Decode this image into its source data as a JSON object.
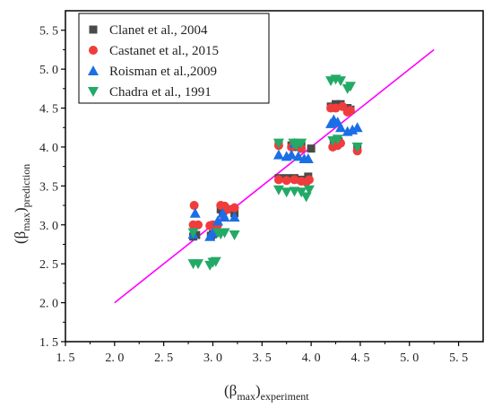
{
  "chart_data": {
    "type": "scatter",
    "xlabel": {
      "main": "(β",
      "sub1": "max",
      "close": ")",
      "sub2": "experiment"
    },
    "ylabel": {
      "main": "(β",
      "sub1": "max",
      "close": ")",
      "sub2": "prediction"
    },
    "xlim": [
      1.5,
      5.75
    ],
    "ylim": [
      1.5,
      5.75
    ],
    "xticks": [
      "1. 5",
      "2. 0",
      "2. 5",
      "3. 0",
      "3. 5",
      "4. 0",
      "4. 5",
      "5. 0",
      "5. 5"
    ],
    "yticks": [
      "1. 5",
      "2. 0",
      "2. 5",
      "3. 0",
      "3. 5",
      "4. 0",
      "4. 5",
      "5. 0",
      "5. 5"
    ],
    "xtick_values": [
      1.5,
      2.0,
      2.5,
      3.0,
      3.5,
      4.0,
      4.5,
      5.0,
      5.5
    ],
    "ytick_values": [
      1.5,
      2.0,
      2.5,
      3.0,
      3.5,
      4.0,
      4.5,
      5.0,
      5.5
    ],
    "grid": false,
    "legend_position": "top-left",
    "reference_line": {
      "x": [
        2.0,
        5.25
      ],
      "y": [
        2.0,
        5.25
      ],
      "color": "#ff00ff"
    },
    "series": [
      {
        "name": "Clanet et al., 2004",
        "marker": "square",
        "color": "#4a4a4a",
        "points": [
          [
            2.8,
            2.85
          ],
          [
            2.83,
            2.87
          ],
          [
            2.98,
            2.86
          ],
          [
            3.0,
            2.88
          ],
          [
            3.08,
            3.2
          ],
          [
            3.1,
            3.18
          ],
          [
            3.15,
            3.2
          ],
          [
            3.22,
            3.15
          ],
          [
            3.67,
            3.6
          ],
          [
            3.75,
            3.6
          ],
          [
            3.83,
            3.6
          ],
          [
            3.9,
            3.58
          ],
          [
            3.97,
            3.62
          ],
          [
            3.67,
            4.05
          ],
          [
            3.8,
            4.02
          ],
          [
            3.85,
            4.0
          ],
          [
            3.9,
            4.02
          ],
          [
            4.0,
            3.98
          ],
          [
            4.2,
            4.52
          ],
          [
            4.25,
            4.55
          ],
          [
            4.3,
            4.55
          ],
          [
            4.37,
            4.5
          ],
          [
            4.4,
            4.48
          ],
          [
            4.23,
            4.05
          ],
          [
            4.28,
            4.07
          ],
          [
            4.47,
            4.0
          ]
        ]
      },
      {
        "name": "Castanet et al., 2015",
        "marker": "circle",
        "color": "#f03c3c",
        "points": [
          [
            2.8,
            3.0
          ],
          [
            2.81,
            3.25
          ],
          [
            2.85,
            3.0
          ],
          [
            2.97,
            2.99
          ],
          [
            3.0,
            3.0
          ],
          [
            3.05,
            3.0
          ],
          [
            3.08,
            3.25
          ],
          [
            3.12,
            3.24
          ],
          [
            3.15,
            3.2
          ],
          [
            3.22,
            3.22
          ],
          [
            3.67,
            3.58
          ],
          [
            3.75,
            3.57
          ],
          [
            3.83,
            3.58
          ],
          [
            3.9,
            3.56
          ],
          [
            3.95,
            3.55
          ],
          [
            3.98,
            3.58
          ],
          [
            3.67,
            4.02
          ],
          [
            3.8,
            4.0
          ],
          [
            3.85,
            4.02
          ],
          [
            3.9,
            3.98
          ],
          [
            4.2,
            4.5
          ],
          [
            4.25,
            4.5
          ],
          [
            4.32,
            4.52
          ],
          [
            4.37,
            4.45
          ],
          [
            4.4,
            4.47
          ],
          [
            4.22,
            4.0
          ],
          [
            4.27,
            4.02
          ],
          [
            4.3,
            4.05
          ],
          [
            4.47,
            3.95
          ]
        ]
      },
      {
        "name": "Roisman et al.,2009",
        "marker": "triangle-up",
        "color": "#1a6fe6",
        "points": [
          [
            2.8,
            2.88
          ],
          [
            2.82,
            3.15
          ],
          [
            2.97,
            2.85
          ],
          [
            3.0,
            2.9
          ],
          [
            3.05,
            3.05
          ],
          [
            3.1,
            3.15
          ],
          [
            3.12,
            3.1
          ],
          [
            3.22,
            3.1
          ],
          [
            3.67,
            3.9
          ],
          [
            3.75,
            3.88
          ],
          [
            3.8,
            3.9
          ],
          [
            3.83,
            4.05
          ],
          [
            3.87,
            3.88
          ],
          [
            3.93,
            3.85
          ],
          [
            3.97,
            3.85
          ],
          [
            4.2,
            4.3
          ],
          [
            4.23,
            4.35
          ],
          [
            4.27,
            4.32
          ],
          [
            4.3,
            4.25
          ],
          [
            4.37,
            4.2
          ],
          [
            4.42,
            4.22
          ],
          [
            4.47,
            4.25
          ]
        ]
      },
      {
        "name": "Chadra et al., 1991",
        "marker": "triangle-down",
        "color": "#22aa66",
        "points": [
          [
            2.8,
            2.5
          ],
          [
            2.85,
            2.5
          ],
          [
            2.97,
            2.48
          ],
          [
            3.0,
            2.52
          ],
          [
            3.03,
            2.53
          ],
          [
            2.8,
            2.9
          ],
          [
            3.05,
            2.9
          ],
          [
            3.08,
            2.88
          ],
          [
            3.12,
            2.9
          ],
          [
            3.22,
            2.87
          ],
          [
            3.67,
            3.45
          ],
          [
            3.75,
            3.42
          ],
          [
            3.83,
            3.43
          ],
          [
            3.9,
            3.42
          ],
          [
            3.95,
            3.36
          ],
          [
            3.98,
            3.45
          ],
          [
            3.67,
            4.05
          ],
          [
            3.82,
            4.05
          ],
          [
            3.85,
            4.02
          ],
          [
            3.9,
            4.05
          ],
          [
            4.2,
            4.85
          ],
          [
            4.25,
            4.87
          ],
          [
            4.3,
            4.85
          ],
          [
            4.37,
            4.75
          ],
          [
            4.4,
            4.78
          ],
          [
            4.22,
            4.08
          ],
          [
            4.27,
            4.1
          ],
          [
            4.47,
            4.0
          ]
        ]
      }
    ]
  }
}
